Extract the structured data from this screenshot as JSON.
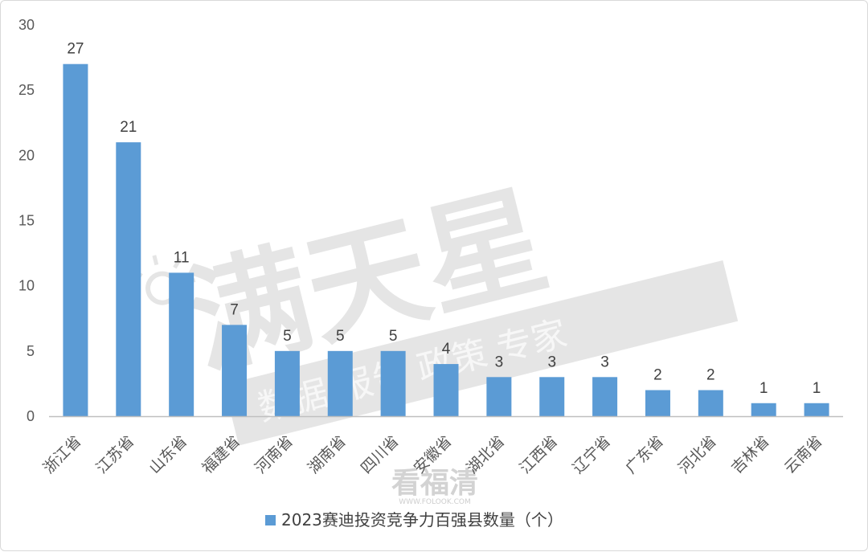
{
  "chart_data": {
    "type": "bar",
    "categories": [
      "浙江省",
      "江苏省",
      "山东省",
      "福建省",
      "河南省",
      "湖南省",
      "四川省",
      "安徽省",
      "湖北省",
      "江西省",
      "辽宁省",
      "广东省",
      "河北省",
      "吉林省",
      "云南省"
    ],
    "series": [
      {
        "name": "2023赛迪投资竞争力百强县数量（个）",
        "values": [
          27,
          21,
          11,
          7,
          5,
          5,
          5,
          4,
          3,
          3,
          3,
          2,
          2,
          1,
          1
        ],
        "color": "#5b9bd5"
      }
    ],
    "ylim": [
      0,
      30
    ],
    "yticks": [
      0,
      5,
      10,
      15,
      20,
      25,
      30
    ],
    "grid": false,
    "legend_position": "bottom",
    "data_labels": true
  },
  "watermark": {
    "main": "满天星",
    "sub": "数据 报告 政策 专家",
    "bottom": "看福清",
    "url": "WWW.FOLOOK.COM"
  },
  "colors": {
    "bar": "#5b9bd5",
    "axis": "#bfbfbf",
    "watermark": "#e3e3e3"
  }
}
